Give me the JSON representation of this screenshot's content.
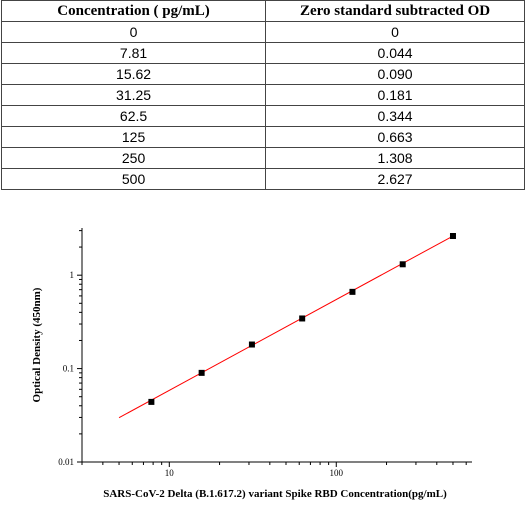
{
  "table": {
    "headers": [
      "Concentration ( pg/mL)",
      "Zero standard subtracted OD"
    ],
    "rows": [
      [
        "0",
        "0"
      ],
      [
        "7.81",
        "0.044"
      ],
      [
        "15.62",
        "0.090"
      ],
      [
        "31.25",
        "0.181"
      ],
      [
        "62.5",
        "0.344"
      ],
      [
        "125",
        "0.663"
      ],
      [
        "250",
        "1.308"
      ],
      [
        "500",
        "2.627"
      ]
    ]
  },
  "chart_data": {
    "type": "scatter",
    "xlabel": "SARS-CoV-2 Delta (B.1.617.2) variant Spike RBD   Concentration(pg/mL)",
    "ylabel": "Optical Density (450nm)",
    "x_scale": "log",
    "y_scale": "log",
    "xlim": [
      3,
      650
    ],
    "ylim": [
      0.01,
      3.2
    ],
    "x_ticks": [
      10,
      100
    ],
    "y_ticks": [
      0.01,
      0.1,
      1
    ],
    "x_tick_labels": [
      "10",
      "100"
    ],
    "y_tick_labels": [
      "0.01",
      "0.1",
      "1"
    ],
    "grid": false,
    "points": {
      "x": [
        7.81,
        15.62,
        31.25,
        62.5,
        125,
        250,
        500
      ],
      "y": [
        0.044,
        0.09,
        0.181,
        0.344,
        0.663,
        1.308,
        2.627
      ]
    },
    "fit_line": {
      "x": [
        5,
        500
      ],
      "y": [
        0.0298,
        2.627
      ]
    },
    "colors": {
      "points": "#000000",
      "fit_line": "#ff0000",
      "axes": "#000000"
    }
  }
}
